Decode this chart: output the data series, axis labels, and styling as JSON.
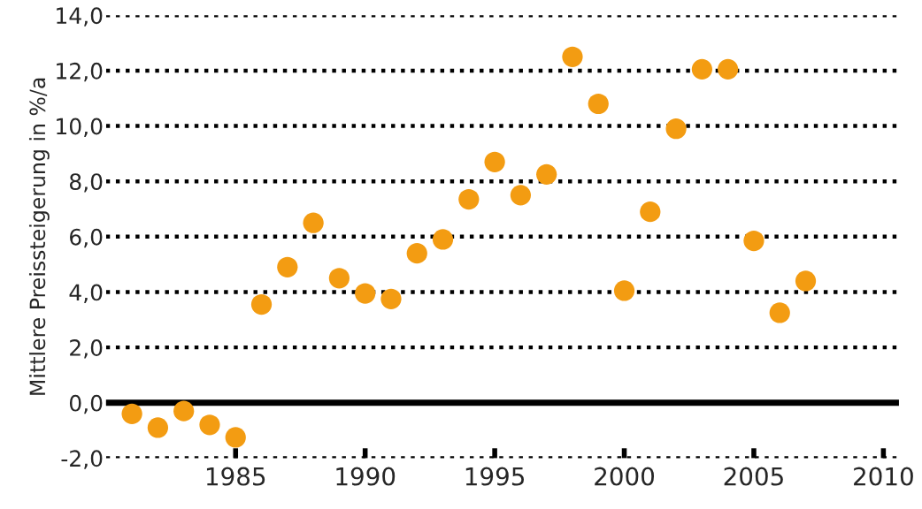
{
  "chart_data": {
    "type": "scatter",
    "ylabel": "Mittlere Preissteigerung in %/a",
    "x": [
      1981,
      1982,
      1983,
      1984,
      1985,
      1986,
      1987,
      1988,
      1989,
      1990,
      1991,
      1992,
      1993,
      1994,
      1995,
      1996,
      1997,
      1998,
      1999,
      2000,
      2001,
      2002,
      2003,
      2004,
      2005,
      2006,
      2007
    ],
    "series": [
      {
        "color": "#f39c12",
        "values": [
          -0.4,
          -0.9,
          -0.3,
          -0.8,
          -1.25,
          3.55,
          4.9,
          6.5,
          4.5,
          3.95,
          3.75,
          5.4,
          5.9,
          7.35,
          8.7,
          7.5,
          8.25,
          12.5,
          10.8,
          4.05,
          6.9,
          9.9,
          12.05,
          12.05,
          5.85,
          3.25,
          4.4
        ]
      }
    ],
    "marker": "circle",
    "xlim": [
      1980,
      2010.6
    ],
    "xticks": [
      1985,
      1990,
      1995,
      2000,
      2005,
      2010
    ],
    "ylim": [
      -2,
      14
    ],
    "yticks": [
      {
        "value": -2,
        "label": "-2,0"
      },
      {
        "value": 0,
        "label": "0,0"
      },
      {
        "value": 2,
        "label": "2,0"
      },
      {
        "value": 4,
        "label": "4,0"
      },
      {
        "value": 6,
        "label": "6,0"
      },
      {
        "value": 8,
        "label": "8,0"
      },
      {
        "value": 10,
        "label": "10,0"
      },
      {
        "value": 12,
        "label": "12,0"
      },
      {
        "value": 14,
        "label": "14,0"
      }
    ],
    "grid": "y",
    "ref_lines": [
      {
        "axis": "y",
        "value": 0,
        "color": "#000000",
        "line_style": "solid"
      }
    ]
  }
}
